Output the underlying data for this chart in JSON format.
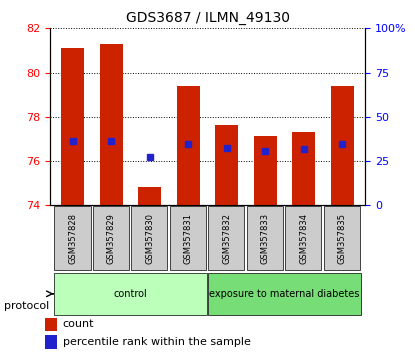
{
  "title": "GDS3687 / ILMN_49130",
  "samples": [
    "GSM357828",
    "GSM357829",
    "GSM357830",
    "GSM357831",
    "GSM357832",
    "GSM357833",
    "GSM357834",
    "GSM357835"
  ],
  "bar_tops": [
    81.1,
    81.3,
    74.85,
    79.4,
    77.65,
    77.15,
    77.3,
    79.4
  ],
  "bar_bottom": 74.0,
  "blue_markers": [
    76.9,
    76.9,
    76.2,
    76.75,
    76.6,
    76.45,
    76.55,
    76.75
  ],
  "bar_color": "#cc2200",
  "blue_color": "#2222cc",
  "left_ylim": [
    74,
    82
  ],
  "left_yticks": [
    74,
    76,
    78,
    80,
    82
  ],
  "right_ylim": [
    0,
    100
  ],
  "right_yticks": [
    0,
    25,
    50,
    75,
    100
  ],
  "right_yticklabels": [
    "0",
    "25",
    "50",
    "75",
    "100%"
  ],
  "groups": [
    {
      "label": "control",
      "start": 0,
      "end": 4,
      "color": "#bbffbb"
    },
    {
      "label": "exposure to maternal diabetes",
      "start": 4,
      "end": 8,
      "color": "#77dd77"
    }
  ],
  "protocol_label": "protocol",
  "legend_count_label": "count",
  "legend_pct_label": "percentile rank within the sample",
  "tick_bg_color": "#cccccc",
  "bar_width": 0.6
}
